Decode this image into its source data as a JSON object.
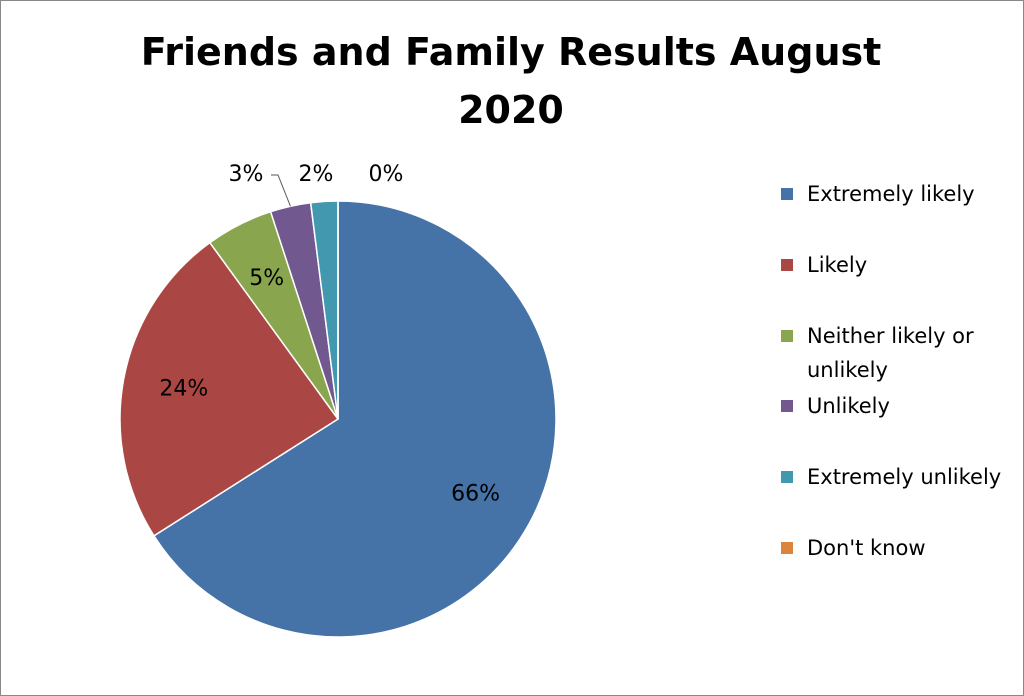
{
  "chart_data": {
    "type": "pie",
    "title": "Friends and Family Results August 2020",
    "categories": [
      "Extremely likely",
      "Likely",
      "Neither likely or unlikely",
      "Unlikely",
      "Extremely unlikely",
      "Don't know"
    ],
    "values": [
      66,
      24,
      5,
      3,
      2,
      0
    ],
    "value_labels": [
      "66%",
      "24%",
      "5%",
      "3%",
      "2%",
      "0%"
    ],
    "colors": [
      "#4572a7",
      "#aa4643",
      "#89a54e",
      "#71588f",
      "#4198af",
      "#db843d"
    ],
    "legend": "right"
  }
}
